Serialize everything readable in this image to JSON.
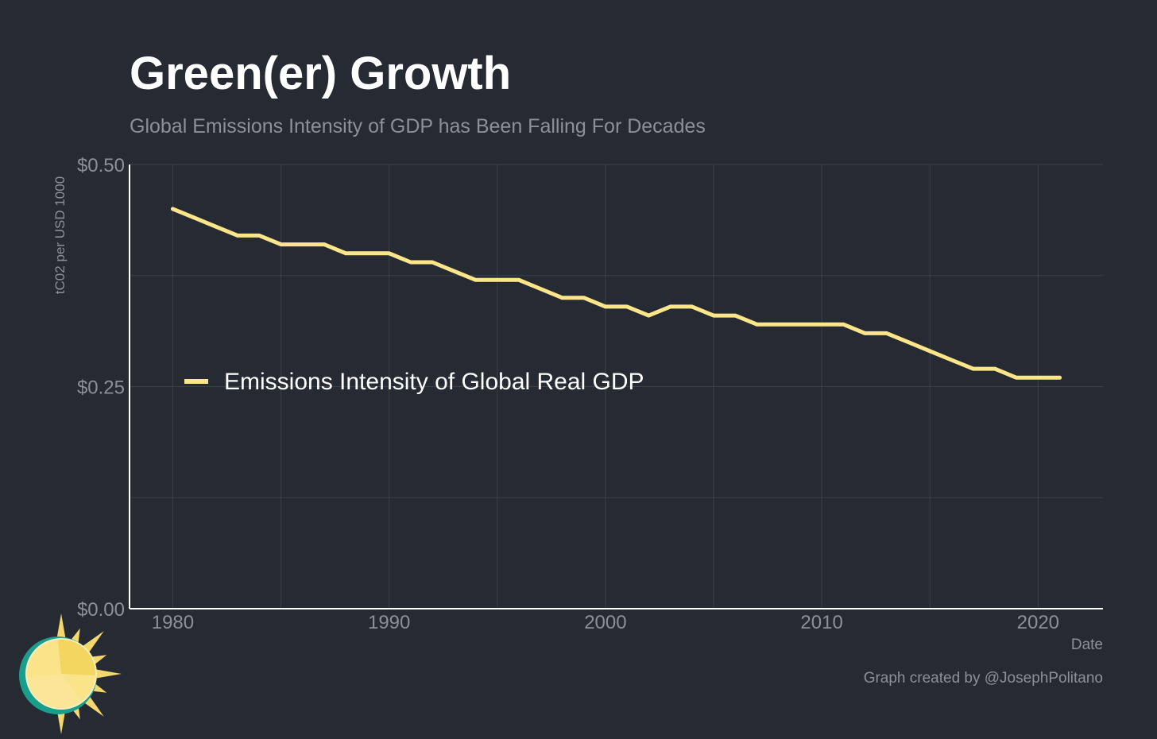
{
  "colors": {
    "background": "#252a33",
    "grid": "#3b404a",
    "axis": "#ffffff",
    "series": "#fde68a",
    "title": "#ffffff",
    "subtitle": "#8c9099",
    "tick": "#8c9099",
    "legend_text": "#ffffff",
    "sun_ring": "#1a9e8c",
    "sun": "#f5d76e"
  },
  "chart_data": {
    "type": "line",
    "title": "Green(er) Growth",
    "subtitle": "Global Emissions Intensity of GDP has Been Falling For Decades",
    "xlabel": "Date",
    "ylabel": "tC02 per USD 1000",
    "xlim": [
      1978,
      2023
    ],
    "ylim": [
      0,
      0.5
    ],
    "x_ticks": [
      1980,
      1990,
      2000,
      2010,
      2020
    ],
    "x_tick_labels": [
      "1980",
      "1990",
      "2000",
      "2010",
      "2020"
    ],
    "y_ticks": [
      0,
      0.25,
      0.5
    ],
    "y_tick_labels": [
      "$0.00",
      "$0.25",
      "$0.50"
    ],
    "grid": true,
    "legend_position": "center-left",
    "caption": "Graph created by @JosephPolitano",
    "series": [
      {
        "name": "Emissions Intensity of Global Real GDP",
        "x": [
          1980,
          1981,
          1982,
          1983,
          1984,
          1985,
          1986,
          1987,
          1988,
          1989,
          1990,
          1991,
          1992,
          1993,
          1994,
          1995,
          1996,
          1997,
          1998,
          1999,
          2000,
          2001,
          2002,
          2003,
          2004,
          2005,
          2006,
          2007,
          2008,
          2009,
          2010,
          2011,
          2012,
          2013,
          2014,
          2015,
          2016,
          2017,
          2018,
          2019,
          2020,
          2021
        ],
        "y": [
          0.45,
          0.44,
          0.43,
          0.42,
          0.42,
          0.41,
          0.41,
          0.41,
          0.4,
          0.4,
          0.4,
          0.39,
          0.39,
          0.38,
          0.37,
          0.37,
          0.37,
          0.36,
          0.35,
          0.35,
          0.34,
          0.34,
          0.33,
          0.34,
          0.34,
          0.33,
          0.33,
          0.32,
          0.32,
          0.32,
          0.32,
          0.32,
          0.31,
          0.31,
          0.3,
          0.29,
          0.28,
          0.27,
          0.27,
          0.26,
          0.26,
          0.26
        ]
      }
    ]
  }
}
